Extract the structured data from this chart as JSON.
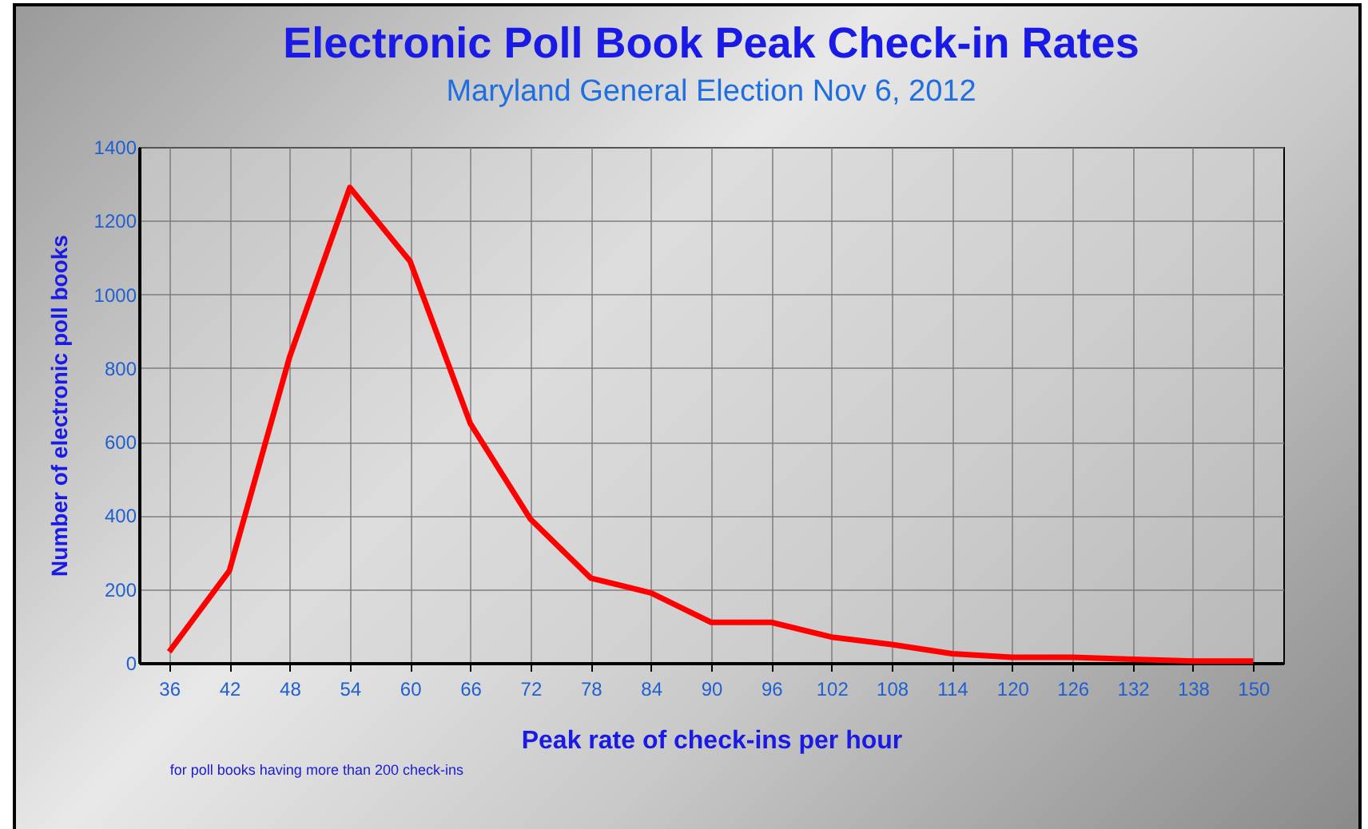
{
  "chart_data": {
    "type": "line",
    "title": "Electronic Poll Book Peak Check-in Rates",
    "subtitle": "Maryland General Election Nov 6, 2012",
    "xlabel": "Peak rate of check-ins per hour",
    "ylabel": "Number of electronic poll books",
    "categories": [
      "36",
      "42",
      "48",
      "54",
      "60",
      "66",
      "72",
      "78",
      "84",
      "90",
      "96",
      "102",
      "108",
      "114",
      "120",
      "126",
      "132",
      "138",
      "150"
    ],
    "series": [
      {
        "color": "#ff0000",
        "values": [
          30,
          250,
          830,
          1290,
          1090,
          650,
          390,
          230,
          190,
          110,
          110,
          70,
          50,
          25,
          15,
          15,
          10,
          5,
          5
        ]
      }
    ],
    "ylim": [
      0,
      1400
    ],
    "yticks": [
      0,
      200,
      400,
      600,
      800,
      1000,
      1200,
      1400
    ],
    "grid": true,
    "marker": "none",
    "annotations": [
      "for poll books having more than 200 check-ins"
    ]
  }
}
